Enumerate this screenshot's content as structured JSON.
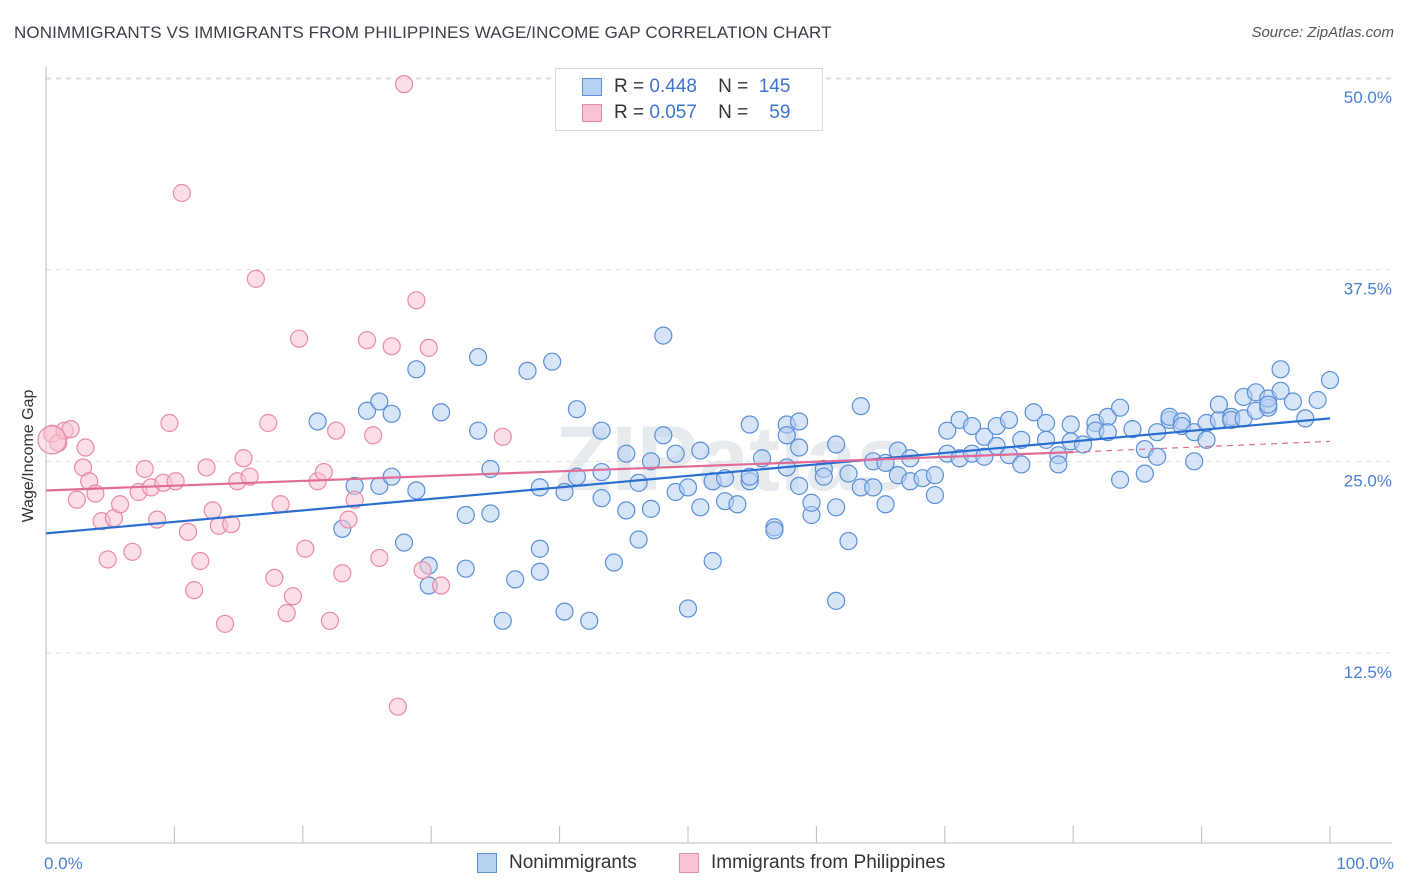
{
  "title": "NONIMMIGRANTS VS IMMIGRANTS FROM PHILIPPINES WAGE/INCOME GAP CORRELATION CHART",
  "source": "Source: ZipAtlas.com",
  "watermark": "ZIPatlas",
  "legend": {
    "rows": [
      {
        "r_label": "R =",
        "r_value": "0.448",
        "n_label": "N =",
        "n_value": "145"
      },
      {
        "r_label": "R =",
        "r_value": "0.057",
        "n_label": "N =",
        "n_value": "59"
      }
    ]
  },
  "bottom_legend": [
    "Nonimmigrants",
    "Immigrants from Philippines"
  ],
  "colors": {
    "blue_fill": "#b7d0f2",
    "blue_stroke": "#5b8fd6",
    "blue_line": "#2a6fd0",
    "pink_fill": "#f7c3d2",
    "pink_stroke": "#e98aa8",
    "pink_line": "#e06c95",
    "grid": "#dddddd",
    "tick_text": "#4a7fd0"
  },
  "chart_data": {
    "type": "scatter",
    "title": "NONIMMIGRANTS VS IMMIGRANTS FROM PHILIPPINES WAGE/INCOME GAP CORRELATION CHART",
    "xlabel": "",
    "ylabel": "Wage/Income Gap",
    "x_tick_labels": [
      "0.0%",
      "100.0%"
    ],
    "y_tick_labels": [
      "12.5%",
      "25.0%",
      "37.5%",
      "50.0%"
    ],
    "xlim": [
      0,
      100
    ],
    "ylim": [
      0,
      51
    ],
    "grid": true,
    "legend_position": "top-center",
    "series": [
      {
        "name": "Nonimmigrants",
        "r": 0.448,
        "n": 145,
        "trend": {
          "x": [
            0,
            100
          ],
          "y": [
            20.3,
            27.8
          ]
        },
        "points": [
          [
            22,
            27.6
          ],
          [
            24,
            20.6
          ],
          [
            25,
            23.4
          ],
          [
            26,
            28.3
          ],
          [
            27,
            23.4
          ],
          [
            27,
            28.9
          ],
          [
            28,
            28.1
          ],
          [
            28,
            24.0
          ],
          [
            29,
            19.7
          ],
          [
            30,
            23.1
          ],
          [
            30,
            31.0
          ],
          [
            31,
            18.2
          ],
          [
            31,
            16.9
          ],
          [
            32,
            28.2
          ],
          [
            34,
            21.5
          ],
          [
            34,
            18.0
          ],
          [
            35,
            31.8
          ],
          [
            35,
            27.0
          ],
          [
            36,
            21.6
          ],
          [
            36,
            24.5
          ],
          [
            37,
            14.6
          ],
          [
            38,
            17.3
          ],
          [
            39,
            30.9
          ],
          [
            40,
            17.8
          ],
          [
            40,
            23.3
          ],
          [
            40,
            19.3
          ],
          [
            41,
            31.5
          ],
          [
            42,
            15.2
          ],
          [
            42,
            23.0
          ],
          [
            43,
            24.0
          ],
          [
            43,
            28.4
          ],
          [
            44,
            14.6
          ],
          [
            45,
            24.3
          ],
          [
            45,
            22.6
          ],
          [
            45,
            27.0
          ],
          [
            46,
            18.4
          ],
          [
            47,
            21.8
          ],
          [
            47,
            25.5
          ],
          [
            48,
            19.9
          ],
          [
            48,
            23.6
          ],
          [
            49,
            25.0
          ],
          [
            49,
            21.9
          ],
          [
            50,
            33.2
          ],
          [
            50,
            26.7
          ],
          [
            51,
            25.5
          ],
          [
            51,
            23.0
          ],
          [
            52,
            23.3
          ],
          [
            52,
            15.4
          ],
          [
            53,
            22.0
          ],
          [
            53,
            25.7
          ],
          [
            54,
            18.5
          ],
          [
            54,
            23.7
          ],
          [
            55,
            23.9
          ],
          [
            55,
            22.4
          ],
          [
            56,
            22.2
          ],
          [
            57,
            23.7
          ],
          [
            57,
            27.4
          ],
          [
            57,
            24.0
          ],
          [
            58,
            25.2
          ],
          [
            59,
            20.7
          ],
          [
            59,
            20.5
          ],
          [
            60,
            27.4
          ],
          [
            60,
            26.7
          ],
          [
            60,
            24.6
          ],
          [
            61,
            23.4
          ],
          [
            61,
            27.6
          ],
          [
            61,
            25.9
          ],
          [
            62,
            21.5
          ],
          [
            62,
            22.3
          ],
          [
            63,
            24.5
          ],
          [
            63,
            24.0
          ],
          [
            64,
            26.1
          ],
          [
            64,
            22.0
          ],
          [
            64,
            15.9
          ],
          [
            65,
            24.2
          ],
          [
            65,
            19.8
          ],
          [
            66,
            28.6
          ],
          [
            66,
            23.3
          ],
          [
            67,
            23.3
          ],
          [
            67,
            25.0
          ],
          [
            68,
            22.2
          ],
          [
            68,
            24.9
          ],
          [
            69,
            24.1
          ],
          [
            69,
            25.7
          ],
          [
            70,
            25.2
          ],
          [
            70,
            23.7
          ],
          [
            71,
            23.9
          ],
          [
            72,
            24.1
          ],
          [
            72,
            22.8
          ],
          [
            73,
            27.0
          ],
          [
            73,
            25.5
          ],
          [
            74,
            25.2
          ],
          [
            74,
            27.7
          ],
          [
            75,
            27.3
          ],
          [
            75,
            25.5
          ],
          [
            76,
            26.6
          ],
          [
            76,
            25.3
          ],
          [
            77,
            27.3
          ],
          [
            77,
            26.0
          ],
          [
            78,
            27.7
          ],
          [
            78,
            25.4
          ],
          [
            79,
            24.8
          ],
          [
            79,
            26.4
          ],
          [
            80,
            28.2
          ],
          [
            81,
            27.5
          ],
          [
            81,
            26.4
          ],
          [
            82,
            25.4
          ],
          [
            82,
            24.8
          ],
          [
            83,
            27.4
          ],
          [
            83,
            26.3
          ],
          [
            84,
            26.1
          ],
          [
            85,
            27.5
          ],
          [
            85,
            27.0
          ],
          [
            86,
            27.9
          ],
          [
            86,
            26.9
          ],
          [
            87,
            28.5
          ],
          [
            87,
            23.8
          ],
          [
            88,
            27.1
          ],
          [
            89,
            25.8
          ],
          [
            89,
            24.2
          ],
          [
            90,
            26.9
          ],
          [
            90,
            25.3
          ],
          [
            91,
            27.7
          ],
          [
            91,
            27.9
          ],
          [
            92,
            27.6
          ],
          [
            92,
            27.3
          ],
          [
            93,
            26.9
          ],
          [
            93,
            25.0
          ],
          [
            94,
            27.5
          ],
          [
            94,
            26.4
          ],
          [
            95,
            27.7
          ],
          [
            95,
            28.7
          ],
          [
            96,
            27.9
          ],
          [
            96,
            27.7
          ],
          [
            97,
            27.8
          ],
          [
            97,
            29.2
          ],
          [
            98,
            28.3
          ],
          [
            98,
            29.5
          ],
          [
            99,
            28.5
          ],
          [
            99,
            29.1
          ],
          [
            99,
            28.7
          ],
          [
            100,
            29.6
          ],
          [
            100,
            31.0
          ],
          [
            101,
            28.9
          ],
          [
            102,
            27.8
          ],
          [
            103,
            29.0
          ],
          [
            104,
            30.3
          ]
        ]
      },
      {
        "name": "Immigrants from Philippines",
        "r": 0.057,
        "n": 59,
        "trend": {
          "x": [
            0,
            80
          ],
          "y": [
            23.1,
            25.6
          ]
        },
        "trend_extension": {
          "x": [
            80,
            100
          ],
          "y": [
            25.6,
            26.3
          ]
        },
        "points": [
          [
            0.5,
            26.8
          ],
          [
            1,
            26.2
          ],
          [
            1.5,
            27.0
          ],
          [
            2,
            27.1
          ],
          [
            2.5,
            22.5
          ],
          [
            3,
            24.6
          ],
          [
            3.2,
            25.9
          ],
          [
            3.5,
            23.7
          ],
          [
            4,
            22.9
          ],
          [
            4.5,
            21.1
          ],
          [
            5,
            18.6
          ],
          [
            5.5,
            21.3
          ],
          [
            6,
            22.2
          ],
          [
            7,
            19.1
          ],
          [
            7.5,
            23.0
          ],
          [
            8,
            24.5
          ],
          [
            8.5,
            23.3
          ],
          [
            9,
            21.2
          ],
          [
            9.5,
            23.6
          ],
          [
            10,
            27.5
          ],
          [
            10.5,
            23.7
          ],
          [
            11,
            42.5
          ],
          [
            11.5,
            20.4
          ],
          [
            12,
            16.6
          ],
          [
            12.5,
            18.5
          ],
          [
            13,
            24.6
          ],
          [
            13.5,
            21.8
          ],
          [
            14,
            20.8
          ],
          [
            14.5,
            14.4
          ],
          [
            15,
            20.9
          ],
          [
            15.5,
            23.7
          ],
          [
            16,
            25.2
          ],
          [
            16.5,
            24.0
          ],
          [
            17,
            36.9
          ],
          [
            18,
            27.5
          ],
          [
            18.5,
            17.4
          ],
          [
            19,
            22.2
          ],
          [
            19.5,
            15.1
          ],
          [
            20,
            16.2
          ],
          [
            20.5,
            33.0
          ],
          [
            21,
            19.3
          ],
          [
            22,
            23.7
          ],
          [
            22.5,
            24.3
          ],
          [
            23,
            14.6
          ],
          [
            23.5,
            27.0
          ],
          [
            24,
            17.7
          ],
          [
            24.5,
            21.2
          ],
          [
            25,
            22.5
          ],
          [
            26,
            32.9
          ],
          [
            26.5,
            26.7
          ],
          [
            27,
            18.7
          ],
          [
            28,
            32.5
          ],
          [
            28.5,
            9.0
          ],
          [
            29,
            49.6
          ],
          [
            30,
            35.5
          ],
          [
            30.5,
            17.9
          ],
          [
            31,
            32.4
          ],
          [
            32,
            16.9
          ],
          [
            37,
            26.6
          ]
        ]
      }
    ]
  }
}
